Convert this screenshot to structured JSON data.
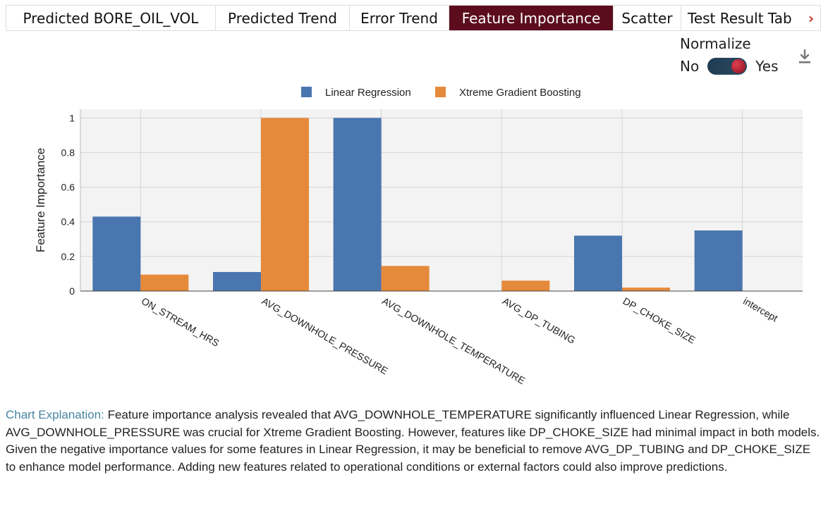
{
  "tabs": [
    {
      "label": "Predicted BORE_OIL_VOL",
      "active": false
    },
    {
      "label": "Predicted Trend",
      "active": false
    },
    {
      "label": "Error Trend",
      "active": false
    },
    {
      "label": "Feature Importance",
      "active": true
    },
    {
      "label": "Scatter",
      "active": false
    },
    {
      "label": "Test Result Tab",
      "active": false
    }
  ],
  "tabs_next_icon": "chevron-right-icon",
  "normalize": {
    "label": "Normalize",
    "off_label": "No",
    "on_label": "Yes",
    "value": true
  },
  "download_icon": "download-icon",
  "chart_data": {
    "type": "bar",
    "categories": [
      "ON_STREAM_HRS",
      "AVG_DOWNHOLE_PRESSURE",
      "AVG_DOWNHOLE_TEMPERATURE",
      "AVG_DP_TUBING",
      "DP_CHOKE_SIZE",
      "intercept"
    ],
    "series": [
      {
        "name": "Linear Regression",
        "color": "#4a76b0",
        "values": [
          0.43,
          0.11,
          1.0,
          0.0,
          0.32,
          0.35
        ]
      },
      {
        "name": "Xtreme Gradient Boosting",
        "color": "#e58a3b",
        "values": [
          0.095,
          1.0,
          0.145,
          0.06,
          0.02,
          0.0
        ]
      }
    ],
    "ylabel": "Feature Importance",
    "xlabel": "",
    "ylim": [
      0,
      1.05
    ],
    "yticks": [
      0,
      0.2,
      0.4,
      0.6,
      0.8,
      1
    ],
    "ytick_labels": [
      "0",
      "0.2",
      "0.4",
      "0.6",
      "0.8",
      "1"
    ],
    "legend_position": "top",
    "grid": true
  },
  "explanation": {
    "lead": "Chart Explanation:",
    "text": " Feature importance analysis revealed that AVG_DOWNHOLE_TEMPERATURE significantly influenced Linear Regression, while AVG_DOWNHOLE_PRESSURE was crucial for Xtreme Gradient Boosting. However, features like DP_CHOKE_SIZE had minimal impact in both models. Given the negative importance values for some features in Linear Regression, it may be beneficial to remove AVG_DP_TUBING and DP_CHOKE_SIZE to enhance model performance. Adding new features related to operational conditions or external factors could also improve predictions."
  }
}
